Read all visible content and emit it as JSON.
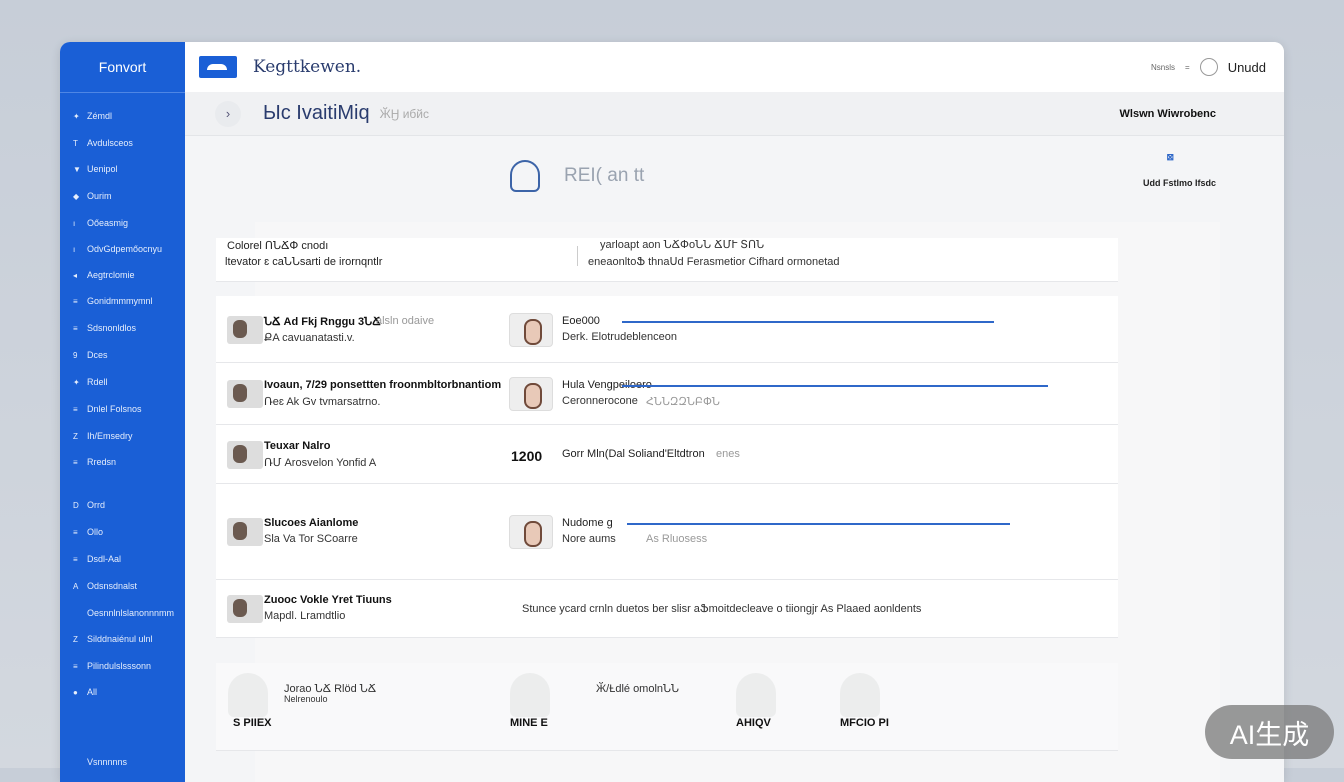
{
  "sidebar": {
    "brand": "Fonvort",
    "items": [
      {
        "icon": "✦",
        "label": "Zémdl"
      },
      {
        "icon": "T",
        "label": "Avdulsceos"
      },
      {
        "icon": "▼",
        "label": "Uenipol"
      },
      {
        "icon": "◆",
        "label": "Ourim"
      },
      {
        "icon": "ı",
        "label": "Oőeasmig"
      },
      {
        "icon": "ı",
        "label": "OdvGdpemőocnyu"
      },
      {
        "icon": "◂",
        "label": "Aegtrclomie"
      },
      {
        "icon": "≡",
        "label": "Gonidmmmymnl"
      },
      {
        "icon": "≡",
        "label": "Sdsnonldlos"
      },
      {
        "icon": "9",
        "label": "Dces"
      },
      {
        "icon": "✦",
        "label": "Rdell"
      },
      {
        "icon": "≡",
        "label": "Dnlel Folsnos"
      },
      {
        "icon": "Z",
        "label": "Ih/Emsedry"
      },
      {
        "icon": "≡",
        "label": "Rredsn"
      },
      {
        "icon": "D",
        "label": "Orrd"
      },
      {
        "icon": "≡",
        "label": "Ollo"
      },
      {
        "icon": "≡",
        "label": "Dsdl-Aal"
      },
      {
        "icon": "A",
        "label": "Odsnsdnalst"
      },
      {
        "icon": "",
        "label": "Oesnnlnlslanonnnmm"
      },
      {
        "icon": "Z",
        "label": "Silddnaiénul ulnl"
      },
      {
        "icon": "≡",
        "label": "Pilindulslsssonn"
      },
      {
        "icon": "●",
        "label": "All"
      },
      {
        "icon": "",
        "label": "Vsnnnnns"
      }
    ]
  },
  "header": {
    "app_title": "Kegttkewen.",
    "small": "Nsnsls",
    "user": "Unudd"
  },
  "subheader": {
    "title": "Ыc IvaitiMiq",
    "meta": "ӁӇ ибйс",
    "right": "Wlswn Wiwrobenc"
  },
  "hero": {
    "text": "REI( an tt",
    "right_top": "⊠",
    "right": "Udd Fstlmo Ifsdc"
  },
  "summary": {
    "left1": "Colorel ՈՆՃՓ cnodı",
    "left2": "ltevator ɛ caՆՆsarti de irornqntlr",
    "right1": "yarloapt aon ՆՃՓoՆՆ ՃՄՒ ՏՈՆ",
    "right2": "eneaonltoՖ thnaՍd Ferasmetior Cifhard ormonetad"
  },
  "rows": [
    {
      "t1": "ՆՃ Ad Fkj Rnggu 3ՆՃ",
      "t1g": "alsln odaive",
      "t2": "ՔA cavuanatasti.v.",
      "n1": "Eoe000",
      "n2": "Derk. Elotrudeblenceon",
      "progress": 0.8
    },
    {
      "t1": "Ivoaun, 7/29 ponsettten froonmbltorbnantiom",
      "t1g": "",
      "t2": "Ռeɛ Ak Gv tvmarsatrno.",
      "n1": "Hula Vengpeiloero",
      "n2": "Ceronnerocone",
      "n2g": "ՀՆՆԶԶՆԲՓՆ",
      "progress": 0.9
    },
    {
      "t1": "Teuxar Nalro",
      "t1g": "",
      "t2": "ՌՄ Arosvelon Yonfid A",
      "num": "1200",
      "n1": "Gorr Mln(Dal Soliand'Eltdtron",
      "n2g": "enes"
    },
    {
      "t1": "Slucoes Aianlome",
      "t1g": "",
      "t2": "Sla Va Tor SCoarre",
      "n1": "Nudome g",
      "n2": "Nore aums",
      "n2g": "As Rluosess",
      "progress": 0.82
    },
    {
      "t1": "Zuooc Vokle Yret Tiuuns",
      "t1g": "",
      "t2": "Mapdl. Lramdtlio",
      "long": "Stunce ycard crnln duetos ber slisr aՖmoitdecleave o tiiongjr As Plaaed aonldents"
    }
  ],
  "bottom": {
    "title": "Jorao ՆՃ Rlöd ՆՃ",
    "sub": "Nelrenoulo",
    "mid": "Ӂ/Ƚdlé omolnՆՆ",
    "labels": [
      "S PIIEX",
      "MINE E",
      "AHIQV",
      "MFCIO PI"
    ]
  },
  "watermark": "AI生成",
  "colors": {
    "sidebar": "#1a5fd6",
    "accent": "#2f68c9"
  }
}
